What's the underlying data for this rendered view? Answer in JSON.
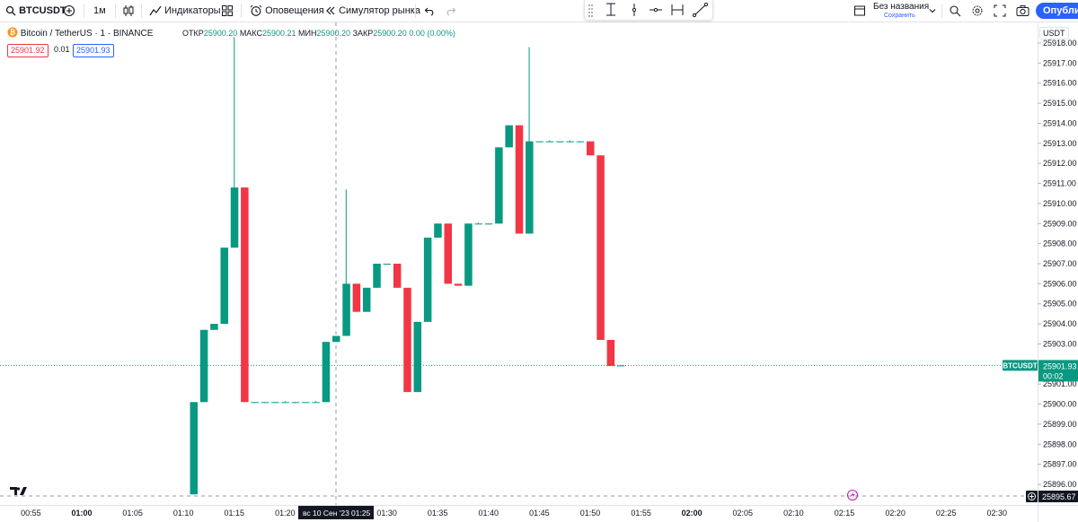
{
  "toolbar": {
    "symbol": "BTCUSDT",
    "interval": "1м",
    "indicators_label": "Индикаторы",
    "alerts_label": "Оповещения",
    "replay_label": "Симулятор рынка",
    "layout_name": "Без названия",
    "layout_status": "Сохранить",
    "publish_label": "Опублик"
  },
  "legend": {
    "title": "Bitcoin / TetherUS · 1 · BINANCE",
    "open_label": "ОТКР",
    "open": "25900.20",
    "high_label": "МАКС",
    "high": "25900.21",
    "low_label": "МИН",
    "low": "25900.20",
    "close_label": "ЗАКР",
    "close": "25900.20",
    "change": "0.00 (0.00%)",
    "bid": "25901.92",
    "spread": "0.01",
    "ask": "25901.93"
  },
  "scale": {
    "currency": "USDT"
  },
  "badges": {
    "last_symbol": "BTCUSDT",
    "last_price": "25901.93",
    "countdown": "00:02",
    "crosshair_price": "25895.67",
    "crosshair_time": "вс 10 Сен '23",
    "crosshair_time_hm": "01:25"
  },
  "colors": {
    "up": "#089981",
    "down": "#f23645",
    "accent": "#2962ff"
  },
  "chart_data": {
    "type": "candlestick",
    "ylim": [
      25895.5,
      25918.3
    ],
    "y_ticks": [
      25896.0,
      25897.0,
      25898.0,
      25899.0,
      25900.0,
      25901.0,
      25902.0,
      25903.0,
      25904.0,
      25905.0,
      25906.0,
      25907.0,
      25908.0,
      25909.0,
      25910.0,
      25911.0,
      25912.0,
      25913.0,
      25914.0,
      25915.0,
      25916.0,
      25917.0,
      25918.0
    ],
    "x_ticks": [
      "00:55",
      "01:00",
      "01:05",
      "01:10",
      "01:15",
      "01:20",
      "01:25",
      "01:30",
      "01:35",
      "01:40",
      "01:45",
      "01:50",
      "01:55",
      "02:00",
      "02:05",
      "02:10",
      "02:15",
      "02:20",
      "02:25",
      "02:30"
    ],
    "bold_ticks": [
      "01:00",
      "02:00"
    ],
    "candles": [
      {
        "t": "01:11",
        "o": 25895.5,
        "h": 25900.1,
        "l": 25895.5,
        "c": 25900.1
      },
      {
        "t": "01:12",
        "o": 25900.1,
        "h": 25903.7,
        "l": 25900.1,
        "c": 25903.7
      },
      {
        "t": "01:13",
        "o": 25903.7,
        "h": 25904.0,
        "l": 25903.7,
        "c": 25904.0
      },
      {
        "t": "01:14",
        "o": 25904.0,
        "h": 25907.8,
        "l": 25904.0,
        "c": 25907.8
      },
      {
        "t": "01:15",
        "o": 25907.8,
        "h": 25918.3,
        "l": 25907.8,
        "c": 25910.8
      },
      {
        "t": "01:16",
        "o": 25910.8,
        "h": 25910.8,
        "l": 25900.1,
        "c": 25900.1
      },
      {
        "t": "01:17",
        "o": 25900.1,
        "h": 25900.1,
        "l": 25900.05,
        "c": 25900.1
      },
      {
        "t": "01:18",
        "o": 25900.1,
        "h": 25900.1,
        "l": 25900.05,
        "c": 25900.1
      },
      {
        "t": "01:19",
        "o": 25900.1,
        "h": 25900.1,
        "l": 25900.05,
        "c": 25900.1
      },
      {
        "t": "01:20",
        "o": 25900.1,
        "h": 25900.15,
        "l": 25900.1,
        "c": 25900.1
      },
      {
        "t": "01:21",
        "o": 25900.1,
        "h": 25900.1,
        "l": 25900.05,
        "c": 25900.1
      },
      {
        "t": "01:22",
        "o": 25900.1,
        "h": 25900.1,
        "l": 25900.05,
        "c": 25900.1
      },
      {
        "t": "01:23",
        "o": 25900.1,
        "h": 25900.15,
        "l": 25900.1,
        "c": 25900.1
      },
      {
        "t": "01:24",
        "o": 25900.1,
        "h": 25903.1,
        "l": 25900.1,
        "c": 25903.1
      },
      {
        "t": "01:25",
        "o": 25903.1,
        "h": 25903.4,
        "l": 25903.1,
        "c": 25903.4
      },
      {
        "t": "01:26",
        "o": 25903.4,
        "h": 25910.7,
        "l": 25903.4,
        "c": 25906.0
      },
      {
        "t": "01:27",
        "o": 25906.0,
        "h": 25906.0,
        "l": 25904.6,
        "c": 25904.6
      },
      {
        "t": "01:28",
        "o": 25904.6,
        "h": 25905.8,
        "l": 25904.6,
        "c": 25905.8
      },
      {
        "t": "01:29",
        "o": 25905.8,
        "h": 25907.0,
        "l": 25905.8,
        "c": 25907.0
      },
      {
        "t": "01:30",
        "o": 25907.0,
        "h": 25907.0,
        "l": 25906.95,
        "c": 25907.0
      },
      {
        "t": "01:31",
        "o": 25907.0,
        "h": 25907.0,
        "l": 25905.8,
        "c": 25905.8
      },
      {
        "t": "01:32",
        "o": 25905.8,
        "h": 25905.8,
        "l": 25900.6,
        "c": 25900.6
      },
      {
        "t": "01:33",
        "o": 25900.6,
        "h": 25904.1,
        "l": 25900.6,
        "c": 25904.1
      },
      {
        "t": "01:34",
        "o": 25904.1,
        "h": 25908.3,
        "l": 25904.1,
        "c": 25908.3
      },
      {
        "t": "01:35",
        "o": 25908.3,
        "h": 25909.0,
        "l": 25908.3,
        "c": 25909.0
      },
      {
        "t": "01:36",
        "o": 25909.0,
        "h": 25909.0,
        "l": 25906.0,
        "c": 25906.0
      },
      {
        "t": "01:37",
        "o": 25906.0,
        "h": 25906.0,
        "l": 25905.9,
        "c": 25905.9
      },
      {
        "t": "01:38",
        "o": 25905.9,
        "h": 25909.0,
        "l": 25905.9,
        "c": 25909.0
      },
      {
        "t": "01:39",
        "o": 25909.0,
        "h": 25909.05,
        "l": 25909.0,
        "c": 25909.0
      },
      {
        "t": "01:40",
        "o": 25909.0,
        "h": 25909.0,
        "l": 25908.95,
        "c": 25909.0
      },
      {
        "t": "01:41",
        "o": 25909.0,
        "h": 25912.8,
        "l": 25909.0,
        "c": 25912.8
      },
      {
        "t": "01:42",
        "o": 25912.8,
        "h": 25913.9,
        "l": 25912.8,
        "c": 25913.9
      },
      {
        "t": "01:43",
        "o": 25913.9,
        "h": 25913.9,
        "l": 25908.5,
        "c": 25908.5
      },
      {
        "t": "01:44",
        "o": 25908.5,
        "h": 25917.8,
        "l": 25908.5,
        "c": 25913.1
      },
      {
        "t": "01:45",
        "o": 25913.1,
        "h": 25913.1,
        "l": 25913.05,
        "c": 25913.1
      },
      {
        "t": "01:46",
        "o": 25913.1,
        "h": 25913.15,
        "l": 25913.1,
        "c": 25913.1
      },
      {
        "t": "01:47",
        "o": 25913.1,
        "h": 25913.1,
        "l": 25913.05,
        "c": 25913.1
      },
      {
        "t": "01:48",
        "o": 25913.1,
        "h": 25913.15,
        "l": 25913.1,
        "c": 25913.1
      },
      {
        "t": "01:49",
        "o": 25913.1,
        "h": 25913.1,
        "l": 25913.05,
        "c": 25913.1
      },
      {
        "t": "01:50",
        "o": 25913.1,
        "h": 25913.1,
        "l": 25912.4,
        "c": 25912.4
      },
      {
        "t": "01:51",
        "o": 25912.4,
        "h": 25912.4,
        "l": 25903.2,
        "c": 25903.2
      },
      {
        "t": "01:52",
        "o": 25903.2,
        "h": 25903.2,
        "l": 25901.9,
        "c": 25901.9
      },
      {
        "t": "01:53",
        "o": 25901.9,
        "h": 25901.95,
        "l": 25901.9,
        "c": 25901.93
      }
    ]
  }
}
